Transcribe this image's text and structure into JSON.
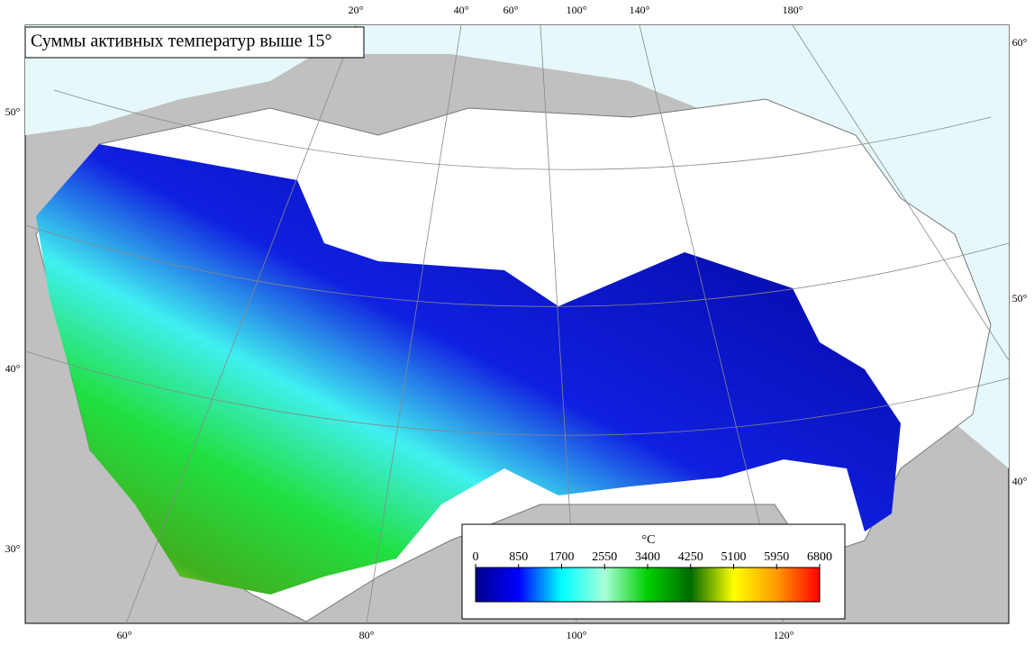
{
  "title": "Суммы активных температур выше 15°",
  "graticule": {
    "top": [
      "20°",
      "40°",
      "60°",
      "100°",
      "140°",
      "180°"
    ],
    "bottom": [
      "60°",
      "80°",
      "100°",
      "120°"
    ],
    "left": [
      "50°",
      "40°",
      "30°"
    ],
    "right": [
      "60°",
      "50°",
      "40°"
    ]
  },
  "legend": {
    "unit": "°C",
    "ticks": [
      0,
      850,
      1700,
      2550,
      3400,
      4250,
      5100,
      5950,
      6800
    ],
    "colors": [
      "#00008b",
      "#0000ff",
      "#00ffff",
      "#a8ffd8",
      "#00d000",
      "#006a00",
      "#ffff00",
      "#ff9a00",
      "#ff0000"
    ]
  }
}
